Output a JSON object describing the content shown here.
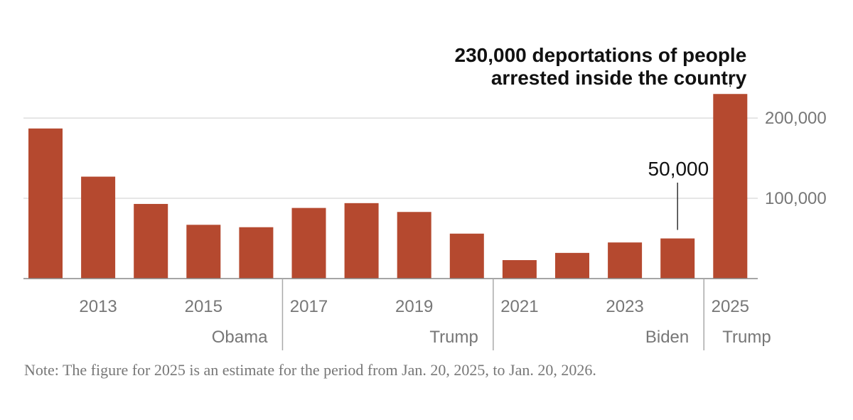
{
  "chart_data": {
    "type": "bar",
    "categories": [
      "2012",
      "2013",
      "2014",
      "2015",
      "2016",
      "2017",
      "2018",
      "2019",
      "2020",
      "2021",
      "2022",
      "2023",
      "2024",
      "2025"
    ],
    "values": [
      187000,
      127000,
      93000,
      67000,
      64000,
      88000,
      94000,
      83000,
      56000,
      23000,
      32000,
      45000,
      50000,
      230000
    ],
    "bar_color": "#b5492f",
    "ylim": [
      0,
      255000
    ],
    "y_ticks": [
      {
        "value": 100000,
        "label": "100,000"
      },
      {
        "value": 200000,
        "label": "200,000"
      }
    ],
    "x_tick_labels": [
      {
        "category": "2013",
        "label": "2013"
      },
      {
        "category": "2015",
        "label": "2015"
      },
      {
        "category": "2017",
        "label": "2017"
      },
      {
        "category": "2019",
        "label": "2019"
      },
      {
        "category": "2021",
        "label": "2021"
      },
      {
        "category": "2023",
        "label": "2023"
      },
      {
        "category": "2025",
        "label": "2025"
      }
    ],
    "administrations": [
      {
        "name": "Obama",
        "start_index": 0,
        "end_index": 4
      },
      {
        "name": "Trump",
        "start_index": 5,
        "end_index": 8
      },
      {
        "name": "Biden",
        "start_index": 9,
        "end_index": 12
      },
      {
        "name": "Trump",
        "start_index": 13,
        "end_index": 13
      }
    ],
    "annotations": [
      {
        "category": "2025",
        "lines": [
          "230,000 deportations of people",
          "arrested inside the country"
        ],
        "style": "bold"
      },
      {
        "category": "2024",
        "lines": [
          "50,000"
        ],
        "style": "regular"
      }
    ],
    "grid": true,
    "note": "Note: The figure for 2025 is an estimate for the period from Jan. 20, 2025, to Jan. 20, 2026."
  }
}
